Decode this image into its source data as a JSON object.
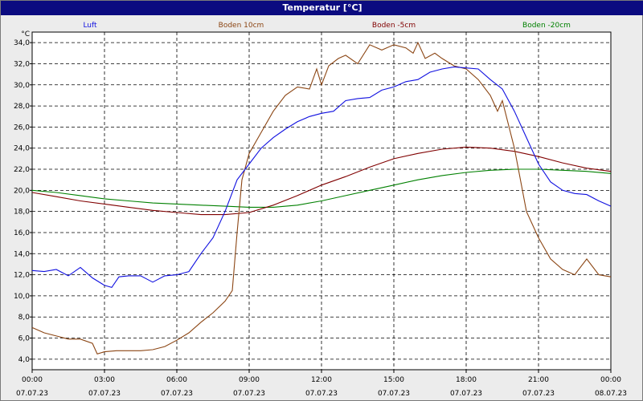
{
  "window": {
    "title": "Temperatur [°C]"
  },
  "chart_data": {
    "type": "line",
    "title": "Temperatur [°C]",
    "ylabel": "°C",
    "ylim": [
      3,
      35
    ],
    "yticks": [
      4,
      6,
      8,
      10,
      12,
      14,
      16,
      18,
      20,
      22,
      24,
      26,
      28,
      30,
      32,
      34
    ],
    "ytick_labels": [
      "4,0",
      "6,0",
      "8,0",
      "10,0",
      "12,0",
      "14,0",
      "16,0",
      "18,0",
      "20,0",
      "22,0",
      "24,0",
      "26,0",
      "28,0",
      "30,0",
      "32,0",
      "34,0"
    ],
    "xlim": [
      0,
      24
    ],
    "xticks": [
      {
        "hour": 0,
        "time": "00:00",
        "date": "07.07.23"
      },
      {
        "hour": 3,
        "time": "03:00",
        "date": "07.07.23"
      },
      {
        "hour": 6,
        "time": "06:00",
        "date": "07.07.23"
      },
      {
        "hour": 9,
        "time": "09:00",
        "date": "07.07.23"
      },
      {
        "hour": 12,
        "time": "12:00",
        "date": "07.07.23"
      },
      {
        "hour": 15,
        "time": "15:00",
        "date": "07.07.23"
      },
      {
        "hour": 18,
        "time": "18:00",
        "date": "07.07.23"
      },
      {
        "hour": 21,
        "time": "21:00",
        "date": "07.07.23"
      },
      {
        "hour": 24,
        "time": "00:00",
        "date": "08.07.23"
      }
    ],
    "grid": true,
    "series": [
      {
        "name": "Luft",
        "color": "#1010e0",
        "points": [
          [
            0,
            12.4
          ],
          [
            0.5,
            12.3
          ],
          [
            1,
            12.5
          ],
          [
            1.5,
            11.9
          ],
          [
            2,
            12.7
          ],
          [
            2.5,
            11.7
          ],
          [
            3,
            11.0
          ],
          [
            3.3,
            10.8
          ],
          [
            3.6,
            11.8
          ],
          [
            4,
            11.9
          ],
          [
            4.5,
            11.9
          ],
          [
            5,
            11.3
          ],
          [
            5.5,
            11.9
          ],
          [
            6,
            12.0
          ],
          [
            6.5,
            12.3
          ],
          [
            7,
            14.0
          ],
          [
            7.5,
            15.5
          ],
          [
            8,
            18.0
          ],
          [
            8.5,
            21.0
          ],
          [
            9,
            22.5
          ],
          [
            9.5,
            24.0
          ],
          [
            10,
            25.0
          ],
          [
            10.5,
            25.8
          ],
          [
            11,
            26.5
          ],
          [
            11.5,
            27.0
          ],
          [
            12,
            27.3
          ],
          [
            12.5,
            27.5
          ],
          [
            13,
            28.5
          ],
          [
            13.5,
            28.7
          ],
          [
            14,
            28.8
          ],
          [
            14.5,
            29.5
          ],
          [
            15,
            29.8
          ],
          [
            15.5,
            30.3
          ],
          [
            16,
            30.5
          ],
          [
            16.5,
            31.2
          ],
          [
            17,
            31.5
          ],
          [
            17.5,
            31.7
          ],
          [
            18,
            31.6
          ],
          [
            18.5,
            31.5
          ],
          [
            19,
            30.5
          ],
          [
            19.5,
            29.6
          ],
          [
            20,
            27.5
          ],
          [
            20.5,
            25.0
          ],
          [
            21,
            22.5
          ],
          [
            21.5,
            20.8
          ],
          [
            22,
            20.0
          ],
          [
            22.5,
            19.7
          ],
          [
            23,
            19.6
          ],
          [
            23.5,
            19.0
          ],
          [
            24,
            18.5
          ]
        ]
      },
      {
        "name": "Boden 10cm",
        "color": "#8b4513",
        "points": [
          [
            0,
            7.0
          ],
          [
            0.5,
            6.5
          ],
          [
            1,
            6.2
          ],
          [
            1.5,
            5.9
          ],
          [
            2,
            5.9
          ],
          [
            2.5,
            5.5
          ],
          [
            2.7,
            4.5
          ],
          [
            3,
            4.7
          ],
          [
            3.5,
            4.8
          ],
          [
            4,
            4.8
          ],
          [
            4.5,
            4.8
          ],
          [
            5,
            4.9
          ],
          [
            5.5,
            5.2
          ],
          [
            6,
            5.8
          ],
          [
            6.5,
            6.5
          ],
          [
            7,
            7.5
          ],
          [
            7.5,
            8.4
          ],
          [
            8,
            9.5
          ],
          [
            8.3,
            10.5
          ],
          [
            8.5,
            16.0
          ],
          [
            8.7,
            21.0
          ],
          [
            9,
            23.5
          ],
          [
            9.5,
            25.5
          ],
          [
            10,
            27.5
          ],
          [
            10.5,
            29.0
          ],
          [
            11,
            29.8
          ],
          [
            11.5,
            29.6
          ],
          [
            11.8,
            31.5
          ],
          [
            12,
            30.0
          ],
          [
            12.3,
            31.8
          ],
          [
            12.7,
            32.5
          ],
          [
            13,
            32.8
          ],
          [
            13.5,
            32.0
          ],
          [
            14,
            33.8
          ],
          [
            14.5,
            33.3
          ],
          [
            15,
            33.8
          ],
          [
            15.5,
            33.5
          ],
          [
            15.8,
            33.0
          ],
          [
            16,
            34.0
          ],
          [
            16.3,
            32.5
          ],
          [
            16.7,
            33.0
          ],
          [
            17,
            32.5
          ],
          [
            17.5,
            31.8
          ],
          [
            18,
            31.5
          ],
          [
            18.5,
            30.5
          ],
          [
            19,
            29.0
          ],
          [
            19.3,
            27.5
          ],
          [
            19.5,
            28.5
          ],
          [
            20,
            24.0
          ],
          [
            20.5,
            18.0
          ],
          [
            21,
            15.5
          ],
          [
            21.5,
            13.5
          ],
          [
            22,
            12.5
          ],
          [
            22.5,
            12.0
          ],
          [
            23,
            13.5
          ],
          [
            23.5,
            12.0
          ],
          [
            24,
            11.8
          ]
        ]
      },
      {
        "name": "Boden -5cm",
        "color": "#800000",
        "points": [
          [
            0,
            19.8
          ],
          [
            1,
            19.4
          ],
          [
            2,
            19.0
          ],
          [
            3,
            18.7
          ],
          [
            4,
            18.4
          ],
          [
            5,
            18.1
          ],
          [
            6,
            17.9
          ],
          [
            7,
            17.7
          ],
          [
            8,
            17.7
          ],
          [
            9,
            17.9
          ],
          [
            10,
            18.6
          ],
          [
            11,
            19.5
          ],
          [
            12,
            20.5
          ],
          [
            13,
            21.3
          ],
          [
            14,
            22.2
          ],
          [
            15,
            23.0
          ],
          [
            16,
            23.5
          ],
          [
            17,
            23.9
          ],
          [
            18,
            24.1
          ],
          [
            19,
            24.0
          ],
          [
            20,
            23.7
          ],
          [
            21,
            23.2
          ],
          [
            22,
            22.6
          ],
          [
            23,
            22.1
          ],
          [
            24,
            21.8
          ]
        ]
      },
      {
        "name": "Boden -20cm",
        "color": "#008000",
        "points": [
          [
            0,
            20.0
          ],
          [
            1,
            19.8
          ],
          [
            2,
            19.5
          ],
          [
            3,
            19.2
          ],
          [
            4,
            19.0
          ],
          [
            5,
            18.8
          ],
          [
            6,
            18.7
          ],
          [
            7,
            18.6
          ],
          [
            8,
            18.5
          ],
          [
            9,
            18.4
          ],
          [
            10,
            18.4
          ],
          [
            11,
            18.6
          ],
          [
            12,
            19.0
          ],
          [
            13,
            19.5
          ],
          [
            14,
            20.0
          ],
          [
            15,
            20.5
          ],
          [
            16,
            21.0
          ],
          [
            17,
            21.4
          ],
          [
            18,
            21.7
          ],
          [
            19,
            21.9
          ],
          [
            20,
            22.0
          ],
          [
            21,
            22.0
          ],
          [
            22,
            21.9
          ],
          [
            23,
            21.8
          ],
          [
            24,
            21.6
          ]
        ]
      }
    ]
  }
}
